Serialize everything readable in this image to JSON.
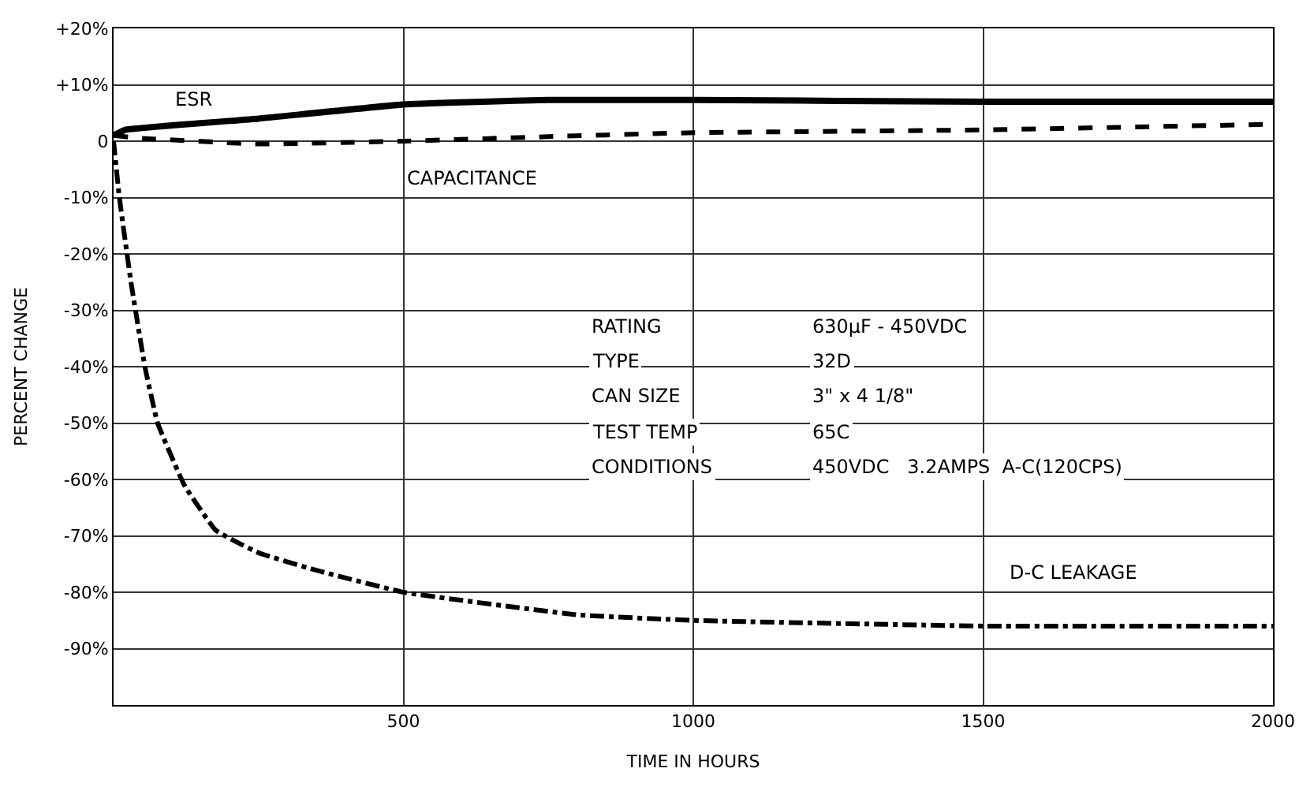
{
  "chart_data": {
    "type": "line",
    "xlabel": "TIME IN HOURS",
    "ylabel": "PERCENT CHANGE",
    "xlim": [
      0,
      2000
    ],
    "xticks": [
      500,
      1000,
      1500,
      2000
    ],
    "ylim": [
      -100,
      20
    ],
    "yticks": [
      {
        "value": 20,
        "label": "+20%"
      },
      {
        "value": 10,
        "label": "+10%"
      },
      {
        "value": 0,
        "label": "0"
      },
      {
        "value": -10,
        "label": "-10%"
      },
      {
        "value": -20,
        "label": "-20%"
      },
      {
        "value": -30,
        "label": "-30%"
      },
      {
        "value": -40,
        "label": "-40%"
      },
      {
        "value": -50,
        "label": "-50%"
      },
      {
        "value": -60,
        "label": "-60%"
      },
      {
        "value": -70,
        "label": "-70%"
      },
      {
        "value": -80,
        "label": "-80%"
      },
      {
        "value": -90,
        "label": "-90%"
      }
    ],
    "grid": true,
    "series": [
      {
        "color": "#000000",
        "line_style": "solid",
        "x": [
          0,
          20,
          250,
          500,
          750,
          1000,
          1500,
          2000
        ],
        "values": [
          1,
          2,
          4,
          6.5,
          7.3,
          7.3,
          7,
          7
        ]
      },
      {
        "color": "#000000",
        "line_style": "dashed",
        "x": [
          0,
          50,
          250,
          500,
          750,
          1000,
          1500,
          2000
        ],
        "values": [
          1,
          0.5,
          -0.5,
          0,
          0.8,
          1.5,
          2,
          3
        ]
      },
      {
        "color": "#000000",
        "line_style": "dashdot",
        "x": [
          0,
          10,
          30,
          54,
          76,
          122,
          176,
          250,
          346,
          500,
          800,
          1000,
          1500,
          2000
        ],
        "values": [
          0,
          -10,
          -25,
          -40,
          -50,
          -61,
          -69,
          -73,
          -76,
          -80,
          -84,
          -85,
          -86,
          -86
        ]
      }
    ],
    "annotations": [
      "ESR",
      "CAPACITANCE",
      "D-C LEAKAGE",
      "RATING",
      "630µF - 450VDC",
      "TYPE",
      "32D",
      "CAN SIZE",
      "3\" x 4 1/8\"",
      "TEST TEMP",
      "65C",
      "CONDITIONS",
      "450VDC   3.2AMPS  A-C(120CPS)"
    ]
  }
}
